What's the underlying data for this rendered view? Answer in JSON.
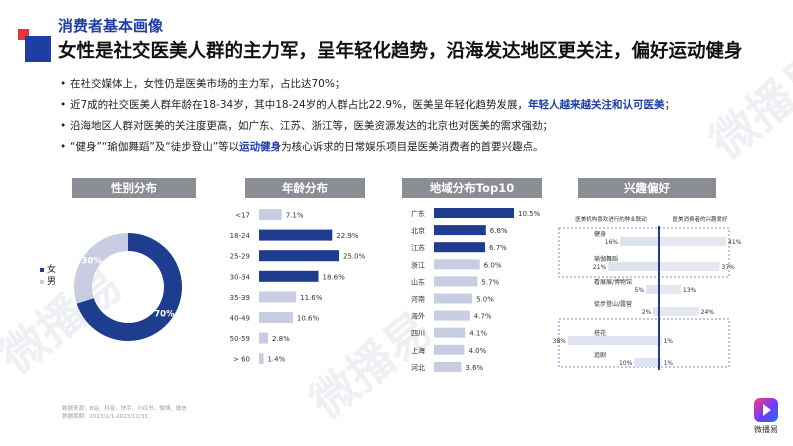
{
  "header": {
    "kicker": "消费者基本画像",
    "title": "女性是社交医美人群的主力军，呈年轻化趋势，沿海发达地区更关注，偏好运动健身"
  },
  "bullets": [
    {
      "pre": "在社交媒体上，女性仍是医美市场的主力军，占比达70%；",
      "hl": "",
      "post": ""
    },
    {
      "pre": "近7成的社交医美人群年龄在18-34岁，其中18-24岁的人群占比22.9%，医美呈年轻化趋势发展，",
      "hl": "年轻人越来越关注和认可医美",
      "post": "；"
    },
    {
      "pre": "沿海地区人群对医美的关注度更高，如广东、江苏、浙江等，医美资源发达的北京也对医美的需求强劲；",
      "hl": "",
      "post": ""
    },
    {
      "pre": "“健身”“瑜伽舞蹈”及“徒步登山”等以",
      "hl": "运动健身",
      "post": "为核心诉求的日常娱乐项目是医美消费者的首要兴趣点。"
    }
  ],
  "sections": {
    "gender": "性别分布",
    "age": "年龄分布",
    "region": "地域分布Top10",
    "interest": "兴趣偏好"
  },
  "legend": {
    "female": "女",
    "male": "男"
  },
  "footnote": {
    "source": "数据来源：B站、抖音、快手、小红书、微博、微信",
    "period": "数据周期：2023/1/1-2023/12/31"
  },
  "brand": {
    "name": "微播易",
    "watermark": "微播易"
  },
  "colors": {
    "navy": "#1f3d8f",
    "light": "#c9cde3",
    "header_gray": "#8a8d93",
    "dashed": "#4a6fd0"
  },
  "chart_data": [
    {
      "type": "pie",
      "title": "性别分布",
      "labels": [
        "女",
        "男"
      ],
      "values": [
        70,
        30
      ],
      "value_labels": [
        "70%",
        "30%"
      ]
    },
    {
      "type": "bar",
      "title": "年龄分布",
      "categories": [
        "<17",
        "18-24",
        "25-29",
        "30-34",
        "35-39",
        "40-49",
        "50-59",
        "> 60"
      ],
      "values": [
        7.1,
        22.9,
        25.0,
        18.6,
        11.6,
        10.6,
        2.8,
        1.4
      ],
      "value_labels": [
        "7.1%",
        "22.9%",
        "25.0%",
        "18.6%",
        "11.6%",
        "10.6%",
        "2.8%",
        "1.4%"
      ],
      "highlight": [
        1,
        2,
        3
      ]
    },
    {
      "type": "bar",
      "title": "地域分布Top10",
      "categories": [
        "广东",
        "北京",
        "江苏",
        "浙江",
        "山东",
        "河南",
        "海外",
        "四川",
        "上海",
        "河北"
      ],
      "values": [
        10.5,
        6.8,
        6.7,
        6.0,
        5.7,
        5.0,
        4.7,
        4.1,
        4.0,
        3.6
      ],
      "value_labels": [
        "10.5%",
        "6.8%",
        "6.7%",
        "6.0%",
        "5.7%",
        "5.0%",
        "4.7%",
        "4.1%",
        "4.0%",
        "3.6%"
      ],
      "highlight": [
        0,
        1,
        2
      ]
    },
    {
      "type": "bar",
      "title": "兴趣偏好",
      "left_header": "医美机构喜欢进行的种业联动",
      "right_header": "医美消费者的兴趣爱好",
      "categories": [
        "健身",
        "瑜伽舞蹈",
        "看展展/博物馆",
        "徒步登山/露营",
        "搭花",
        "追剧"
      ],
      "series": [
        {
          "values": [
            16,
            21,
            5,
            2,
            38,
            10
          ],
          "value_labels": [
            "16%",
            "21%",
            "5%",
            "2%",
            "38%",
            "10%"
          ]
        },
        {
          "values": [
            41,
            37,
            13,
            24,
            1,
            1
          ],
          "value_labels": [
            "41%",
            "37%",
            "13%",
            "24%",
            "1%",
            "1%"
          ]
        }
      ]
    }
  ]
}
